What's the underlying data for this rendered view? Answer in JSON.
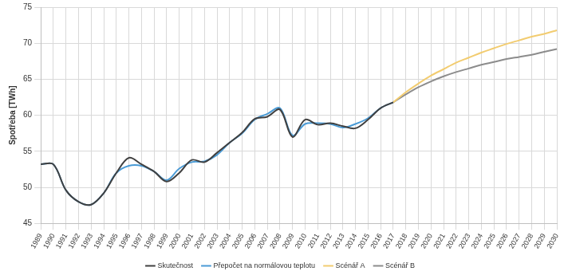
{
  "chart_data": {
    "type": "line",
    "y_label": "Spotřeba [TWh]",
    "categories": [
      "1989",
      "1990",
      "1991",
      "1992",
      "1993",
      "1994",
      "1995",
      "1996",
      "1997",
      "1998",
      "1999",
      "2000",
      "2001",
      "2002",
      "2003",
      "2004",
      "2005",
      "2006",
      "2007",
      "2008",
      "2009",
      "2010",
      "2011",
      "2012",
      "2013",
      "2014",
      "2015",
      "2016",
      "2017",
      "2018",
      "2019",
      "2020",
      "2021",
      "2022",
      "2023",
      "2024",
      "2025",
      "2026",
      "2027",
      "2028",
      "2029",
      "2030"
    ],
    "series": [
      {
        "name": "Skutečnost",
        "color": "#404040",
        "values": [
          53.2,
          53.2,
          49.6,
          48.0,
          47.6,
          49.2,
          52.0,
          54.1,
          53.2,
          52.2,
          50.8,
          52.0,
          53.8,
          53.5,
          54.8,
          56.2,
          57.6,
          59.5,
          59.8,
          60.8,
          57.0,
          59.4,
          58.7,
          58.9,
          58.5,
          58.2,
          59.4,
          61.0,
          61.8,
          null,
          null,
          null,
          null,
          null,
          null,
          null,
          null,
          null,
          null,
          null,
          null,
          null
        ]
      },
      {
        "name": "Přepočet na normálovou teplotu",
        "color": "#4a9bd6",
        "values": [
          53.2,
          53.2,
          49.6,
          48.0,
          47.6,
          49.2,
          52.0,
          53.0,
          53.0,
          52.2,
          51.0,
          52.6,
          53.5,
          53.6,
          54.5,
          56.2,
          57.5,
          59.4,
          60.2,
          61.0,
          57.2,
          58.8,
          58.9,
          58.8,
          58.3,
          58.8,
          59.6,
          61.0,
          61.8,
          null,
          null,
          null,
          null,
          null,
          null,
          null,
          null,
          null,
          null,
          null,
          null,
          null
        ]
      },
      {
        "name": "Scénář A",
        "color": "#f2cc70",
        "values": [
          null,
          null,
          null,
          null,
          null,
          null,
          null,
          null,
          null,
          null,
          null,
          null,
          null,
          null,
          null,
          null,
          null,
          null,
          null,
          null,
          null,
          null,
          null,
          null,
          null,
          null,
          null,
          null,
          61.8,
          63.2,
          64.4,
          65.5,
          66.4,
          67.3,
          68.0,
          68.7,
          69.3,
          69.9,
          70.4,
          70.9,
          71.3,
          71.8
        ]
      },
      {
        "name": "Scénář B",
        "color": "#8c8c8c",
        "values": [
          null,
          null,
          null,
          null,
          null,
          null,
          null,
          null,
          null,
          null,
          null,
          null,
          null,
          null,
          null,
          null,
          null,
          null,
          null,
          null,
          null,
          null,
          null,
          null,
          null,
          null,
          null,
          null,
          61.8,
          62.9,
          63.9,
          64.7,
          65.4,
          66.0,
          66.5,
          67.0,
          67.4,
          67.8,
          68.1,
          68.4,
          68.8,
          69.2
        ]
      }
    ],
    "ylim": [
      45,
      75
    ],
    "yticks": [
      45,
      50,
      55,
      60,
      65,
      70,
      75
    ],
    "grid": true,
    "legend": "bottom"
  }
}
